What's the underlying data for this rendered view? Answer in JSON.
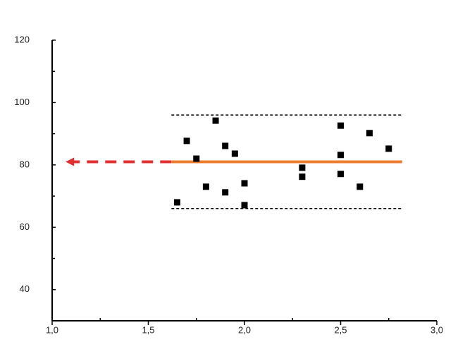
{
  "chart_data": {
    "type": "scatter",
    "x": [
      1.65,
      1.7,
      1.75,
      1.8,
      1.85,
      1.9,
      1.9,
      1.95,
      2.0,
      2.0,
      2.3,
      2.3,
      2.5,
      2.5,
      2.5,
      2.6,
      2.65,
      2.75
    ],
    "series": [
      {
        "color": "#000000",
        "values": [
          68,
          87.7,
          82,
          73,
          94.2,
          86.1,
          71.2,
          83.6,
          74.1,
          67.1,
          79.1,
          76.2,
          92.6,
          83.2,
          77.1,
          73,
          90.2,
          85.2
        ]
      }
    ],
    "xlim": [
      1,
      3
    ],
    "ylim": [
      30,
      120
    ],
    "xticks": [
      {
        "value": 1,
        "label": "1,0"
      },
      {
        "value": 1.5,
        "label": "1,5"
      },
      {
        "value": 2,
        "label": "2,0"
      },
      {
        "value": 2.5,
        "label": "2,5"
      },
      {
        "value": 3,
        "label": "3,0"
      }
    ],
    "x_minor_ticks": [
      1.25,
      1.75,
      2.25,
      2.75
    ],
    "yticks": [
      40,
      60,
      80,
      100,
      120
    ],
    "y_minor_ticks": [
      50,
      70,
      90,
      110
    ],
    "mean_line": {
      "value": 81,
      "x_range": [
        1.62,
        2.82
      ],
      "color": "#ed7d31"
    },
    "band": {
      "upper": 96,
      "lower": 66,
      "color": "#000000"
    },
    "arrow": {
      "to_x": 1.07,
      "color": "#e03030"
    }
  }
}
